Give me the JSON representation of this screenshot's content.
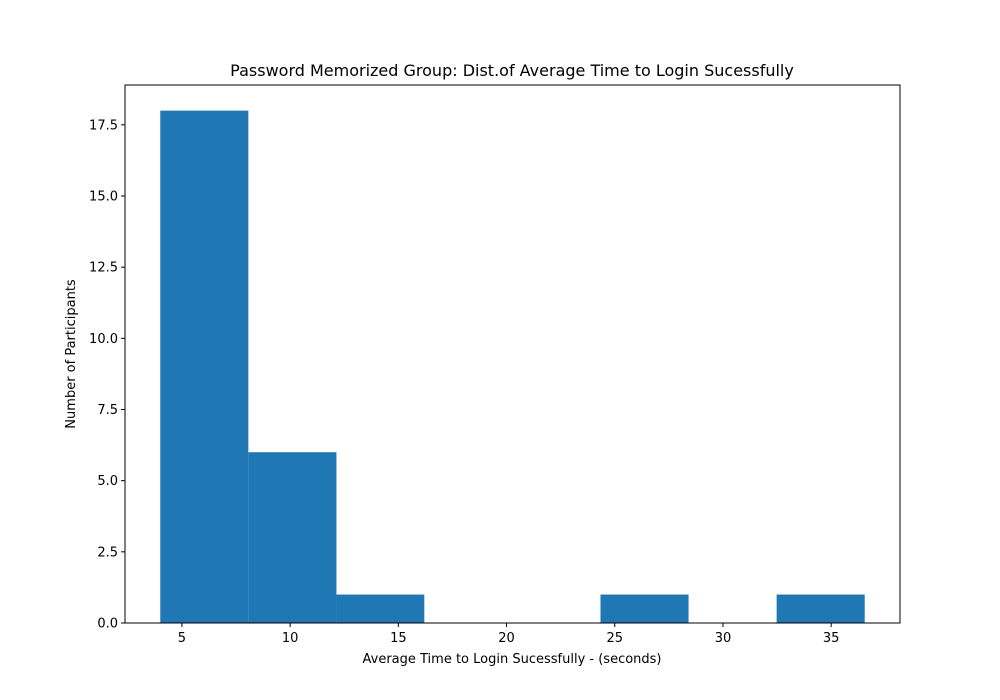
{
  "chart_data": {
    "type": "bar",
    "title": "Password Memorized Group: Dist.of Average Time to Login Sucessfully",
    "xlabel": "Average Time to Login Sucessfully - (seconds)",
    "ylabel": "Number of Participants",
    "bins": [
      {
        "start": 4.0,
        "end": 8.07,
        "count": 18
      },
      {
        "start": 8.07,
        "end": 12.14,
        "count": 6
      },
      {
        "start": 12.14,
        "end": 16.2,
        "count": 1
      },
      {
        "start": 16.2,
        "end": 20.27,
        "count": 0
      },
      {
        "start": 20.27,
        "end": 24.34,
        "count": 0
      },
      {
        "start": 24.34,
        "end": 28.41,
        "count": 1
      },
      {
        "start": 28.41,
        "end": 32.48,
        "count": 0
      },
      {
        "start": 32.48,
        "end": 36.55,
        "count": 1
      }
    ],
    "xlim": [
      2.37,
      38.18
    ],
    "ylim": [
      0,
      18.9
    ],
    "xticks": [
      5,
      10,
      15,
      20,
      25,
      30,
      35
    ],
    "xtick_labels": [
      "5",
      "10",
      "15",
      "20",
      "25",
      "30",
      "35"
    ],
    "yticks": [
      0.0,
      2.5,
      5.0,
      7.5,
      10.0,
      12.5,
      15.0,
      17.5
    ],
    "ytick_labels": [
      "0.0",
      "2.5",
      "5.0",
      "7.5",
      "10.0",
      "12.5",
      "15.0",
      "17.5"
    ],
    "bar_color": "#1f77b4",
    "grid": false,
    "legend": "none"
  }
}
